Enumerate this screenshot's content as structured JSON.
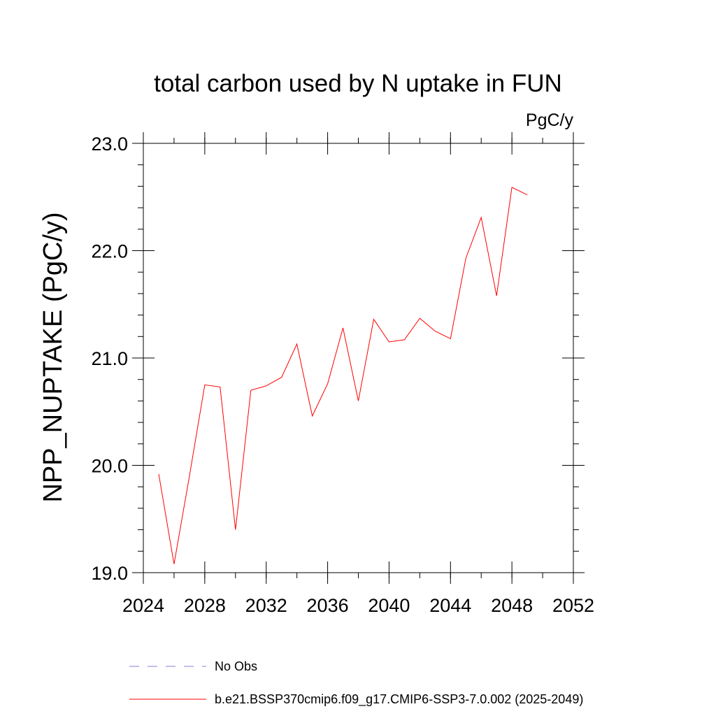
{
  "chart_data": {
    "type": "line",
    "title": "total carbon used by N uptake in FUN",
    "units_label": "PgC/y",
    "ylabel": "NPP_NUPTAKE  (PgC/y)",
    "xlabel": "",
    "xlim": [
      2024,
      2052
    ],
    "ylim": [
      19.0,
      23.0
    ],
    "x_ticks": [
      2024,
      2028,
      2032,
      2036,
      2040,
      2044,
      2048,
      2052
    ],
    "y_ticks": [
      "19.0",
      "20.0",
      "21.0",
      "22.0",
      "23.0"
    ],
    "y_minor_step": 0.2,
    "x_minor_step": 2,
    "grid": false,
    "legend_position": "bottom",
    "series": [
      {
        "name": "No Obs",
        "color": "#8080d8",
        "dash": "dashed",
        "x": [],
        "values": []
      },
      {
        "name": "b.e21.BSSP370cmip6.f09_g17.CMIP6-SSP3-7.0.002 (2025-2049)",
        "color": "#ff0000",
        "dash": "solid",
        "x": [
          2025,
          2026,
          2027,
          2028,
          2029,
          2030,
          2031,
          2032,
          2033,
          2034,
          2035,
          2036,
          2037,
          2038,
          2039,
          2040,
          2041,
          2042,
          2043,
          2044,
          2045,
          2046,
          2047,
          2048,
          2049
        ],
        "values": [
          19.92,
          19.08,
          19.9,
          20.75,
          20.73,
          19.4,
          20.7,
          20.74,
          20.82,
          21.13,
          20.46,
          20.76,
          21.28,
          20.6,
          21.36,
          21.15,
          21.17,
          21.37,
          21.25,
          21.18,
          21.93,
          22.31,
          21.58,
          22.59,
          22.52
        ]
      }
    ]
  }
}
